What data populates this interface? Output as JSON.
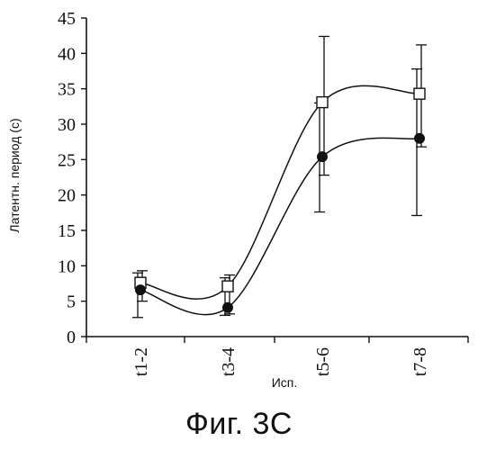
{
  "caption": "Фиг. 3C",
  "chart_data": {
    "type": "line",
    "title": "",
    "xlabel": "Исп.",
    "ylabel": "Латентн. период (c)",
    "categories": [
      "t1-2",
      "t3-4",
      "t5-6",
      "t7-8"
    ],
    "ylim": [
      0,
      45
    ],
    "yticks": [
      0,
      5,
      10,
      15,
      20,
      25,
      30,
      35,
      40,
      45
    ],
    "grid": false,
    "legend": "none",
    "series": [
      {
        "marker": "square-open",
        "values": [
          7.6,
          7.1,
          33.1,
          34.3
        ],
        "err_low": [
          5.0,
          3.2,
          22.8,
          26.8
        ],
        "err_high": [
          9.3,
          8.7,
          42.4,
          41.2
        ]
      },
      {
        "marker": "circle-filled",
        "values": [
          6.6,
          4.1,
          25.4,
          28.0
        ],
        "err_low": [
          2.7,
          3.0,
          17.6,
          17.1
        ],
        "err_high": [
          9.0,
          8.3,
          33.0,
          37.8
        ]
      }
    ],
    "colors": {
      "ink": "#111111"
    }
  }
}
